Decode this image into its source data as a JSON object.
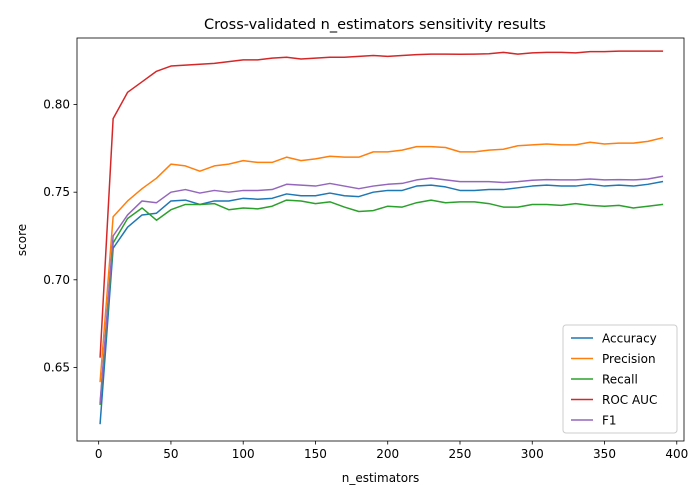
{
  "chart_data": {
    "type": "line",
    "title": "Cross-validated n_estimators sensitivity results",
    "xlabel": "n_estimators",
    "ylabel": "score",
    "xlim": [
      -15,
      405
    ],
    "ylim": [
      0.608,
      0.838
    ],
    "xticks": [
      0,
      50,
      100,
      150,
      200,
      250,
      300,
      350,
      400
    ],
    "yticks": [
      0.65,
      0.7,
      0.75,
      0.8
    ],
    "ytick_labels": [
      "0.65",
      "0.70",
      "0.75",
      "0.80"
    ],
    "grid": false,
    "legend_position": "lower-right",
    "x": [
      1,
      10,
      20,
      30,
      40,
      50,
      60,
      70,
      80,
      90,
      100,
      110,
      120,
      130,
      140,
      150,
      160,
      170,
      180,
      190,
      200,
      210,
      220,
      230,
      240,
      250,
      260,
      270,
      280,
      290,
      300,
      310,
      320,
      330,
      340,
      350,
      360,
      370,
      380,
      390
    ],
    "series": [
      {
        "name": "Accuracy",
        "color": "#1f77b4",
        "values": [
          0.618,
          0.718,
          0.73,
          0.737,
          0.738,
          0.745,
          0.7455,
          0.743,
          0.745,
          0.745,
          0.7465,
          0.746,
          0.7465,
          0.749,
          0.748,
          0.748,
          0.7495,
          0.748,
          0.7475,
          0.75,
          0.751,
          0.751,
          0.7535,
          0.754,
          0.753,
          0.751,
          0.751,
          0.7515,
          0.7515,
          0.7525,
          0.7535,
          0.754,
          0.7535,
          0.7535,
          0.7545,
          0.7535,
          0.754,
          0.7535,
          0.7545,
          0.756
        ]
      },
      {
        "name": "Precision",
        "color": "#ff7f0e",
        "values": [
          0.642,
          0.736,
          0.745,
          0.752,
          0.758,
          0.766,
          0.765,
          0.762,
          0.765,
          0.766,
          0.768,
          0.767,
          0.767,
          0.77,
          0.768,
          0.769,
          0.7705,
          0.77,
          0.77,
          0.773,
          0.773,
          0.774,
          0.776,
          0.776,
          0.7755,
          0.773,
          0.773,
          0.774,
          0.7745,
          0.7765,
          0.777,
          0.7775,
          0.777,
          0.777,
          0.7785,
          0.7775,
          0.778,
          0.778,
          0.779,
          0.781
        ]
      },
      {
        "name": "Recall",
        "color": "#2ca02c",
        "values": [
          0.629,
          0.721,
          0.735,
          0.741,
          0.734,
          0.74,
          0.743,
          0.743,
          0.7435,
          0.74,
          0.741,
          0.7405,
          0.742,
          0.7455,
          0.745,
          0.7435,
          0.7445,
          0.7415,
          0.739,
          0.7395,
          0.742,
          0.7415,
          0.744,
          0.7455,
          0.744,
          0.7445,
          0.7445,
          0.7435,
          0.7415,
          0.7415,
          0.743,
          0.743,
          0.7425,
          0.7435,
          0.7425,
          0.742,
          0.7425,
          0.741,
          0.742,
          0.743
        ]
      },
      {
        "name": "ROC AUC",
        "color": "#d62728",
        "values": [
          0.656,
          0.792,
          0.807,
          0.813,
          0.819,
          0.822,
          0.8225,
          0.823,
          0.8235,
          0.8245,
          0.8255,
          0.8255,
          0.8265,
          0.827,
          0.826,
          0.8265,
          0.827,
          0.827,
          0.8275,
          0.828,
          0.8275,
          0.828,
          0.8285,
          0.8288,
          0.8288,
          0.8287,
          0.8288,
          0.829,
          0.8298,
          0.8288,
          0.8295,
          0.8298,
          0.8298,
          0.8295,
          0.8302,
          0.8302,
          0.8305,
          0.8305,
          0.8305,
          0.8305
        ]
      },
      {
        "name": "F1",
        "color": "#9467bd",
        "values": [
          0.63,
          0.725,
          0.737,
          0.745,
          0.744,
          0.75,
          0.7515,
          0.7495,
          0.751,
          0.75,
          0.751,
          0.751,
          0.7515,
          0.7545,
          0.754,
          0.7535,
          0.755,
          0.7535,
          0.752,
          0.7535,
          0.7545,
          0.755,
          0.757,
          0.758,
          0.757,
          0.756,
          0.756,
          0.756,
          0.7555,
          0.756,
          0.7568,
          0.7572,
          0.757,
          0.757,
          0.7575,
          0.757,
          0.7572,
          0.757,
          0.7575,
          0.759
        ]
      }
    ]
  }
}
